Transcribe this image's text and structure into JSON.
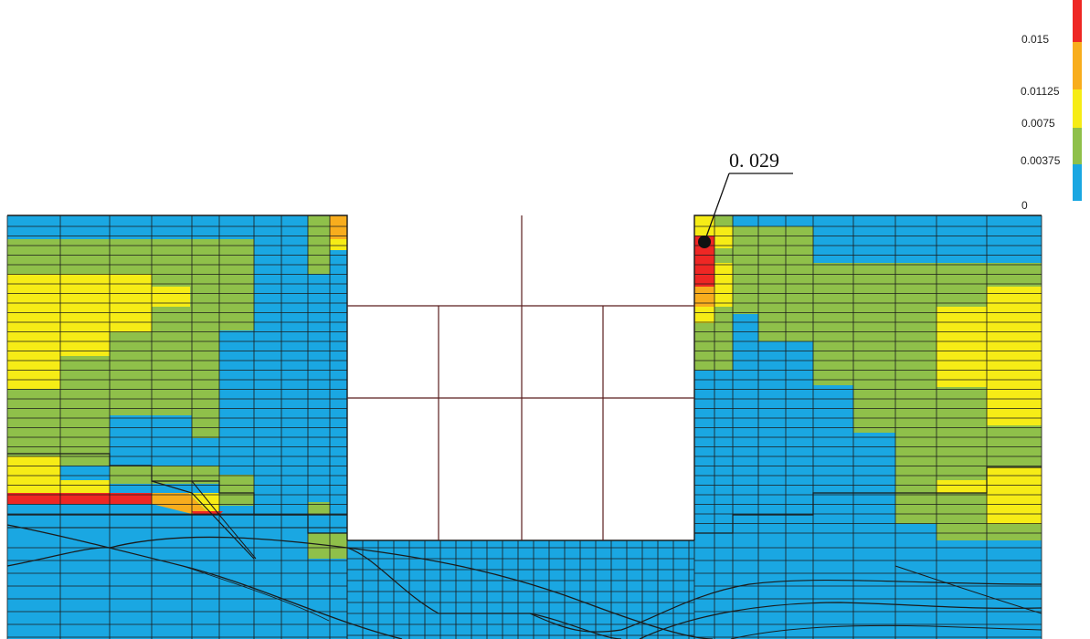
{
  "legend": {
    "ticks": [
      {
        "value": 0.015,
        "label": "0.015"
      },
      {
        "value": 0.01125,
        "label": "0.01125"
      },
      {
        "value": 0.0075,
        "label": "0.0075"
      },
      {
        "value": 0.00375,
        "label": "0.00375"
      },
      {
        "value": 0,
        "label": "0"
      }
    ],
    "bands": [
      {
        "from": 0,
        "to": 0.00375,
        "color": "#1aa7e2"
      },
      {
        "from": 0.00375,
        "to": 0.0075,
        "color": "#8fc04a"
      },
      {
        "from": 0.0075,
        "to": 0.01125,
        "color": "#f6ec16"
      },
      {
        "from": 0.01125,
        "to": 0.015,
        "color": "#f8ad1d"
      },
      {
        "from": 0.015,
        "to": null,
        "color": "#ee2724"
      }
    ]
  },
  "callout": {
    "label": "0. 029"
  },
  "colors": {
    "blue": "#1aa7e2",
    "green": "#8fc04a",
    "yellow": "#f6ec16",
    "orange": "#f8ad1d",
    "red": "#ee2724",
    "mesh_line": "#1b1b1b"
  }
}
